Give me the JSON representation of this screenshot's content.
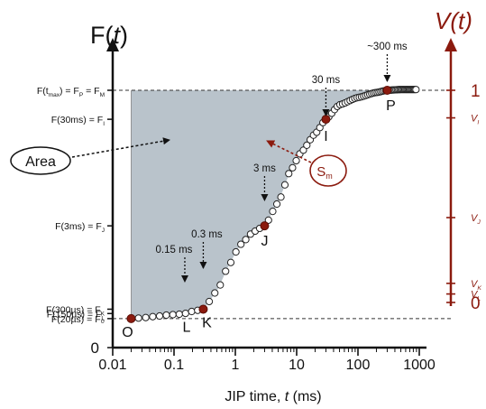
{
  "chart_data": {
    "type": "scatter",
    "x_scale": "log",
    "xlim": [
      0.01,
      1000
    ],
    "xlabel": "JIP time, t (ms)",
    "xticks": [
      {
        "value": 0.01,
        "label": "0.01"
      },
      {
        "value": 0.1,
        "label": "0.1"
      },
      {
        "value": 1,
        "label": "1"
      },
      {
        "value": 10,
        "label": "10"
      },
      {
        "value": 100,
        "label": "100"
      },
      {
        "value": 1000,
        "label": "1000"
      }
    ],
    "left_axis": {
      "title": "F(t)",
      "origin_label": "0",
      "ticks": [
        {
          "value": 0.4,
          "label": "F(20µs) = F₀"
        },
        {
          "value": 0.47,
          "label": "F(150µs) = F_L"
        },
        {
          "value": 0.53,
          "label": "F(300µs) = F_K"
        },
        {
          "value": 1.68,
          "label": "F(3ms) = F_J"
        },
        {
          "value": 3.15,
          "label": "F(30ms) = F_I"
        },
        {
          "value": 3.55,
          "label": "F(t_max) = F_P = F_M"
        }
      ]
    },
    "right_axis": {
      "title": "V(t)",
      "ticks": [
        {
          "value": 0,
          "label": "0"
        },
        {
          "value": 0.04,
          "label": "V_L"
        },
        {
          "value": 0.09,
          "label": "V_K"
        },
        {
          "value": 0.4,
          "label": "V_J"
        },
        {
          "value": 0.87,
          "label": "V_I"
        },
        {
          "value": 1,
          "label": "1"
        }
      ],
      "color": "#8b1a0e"
    },
    "series": [
      {
        "points": [
          [
            0.02,
            0.4
          ],
          [
            0.03,
            0.41
          ],
          [
            0.05,
            0.43
          ],
          [
            0.08,
            0.45
          ],
          [
            0.12,
            0.46
          ],
          [
            0.15,
            0.47
          ],
          [
            0.2,
            0.5
          ],
          [
            0.3,
            0.53
          ],
          [
            0.5,
            0.78
          ],
          [
            0.8,
            1.15
          ],
          [
            1.2,
            1.42
          ],
          [
            2.0,
            1.6
          ],
          [
            3.0,
            1.68
          ],
          [
            5.0,
            2.0
          ],
          [
            8.0,
            2.45
          ],
          [
            12.0,
            2.7
          ],
          [
            20.0,
            2.95
          ],
          [
            30.0,
            3.15
          ],
          [
            50.0,
            3.35
          ],
          [
            100.0,
            3.45
          ],
          [
            200.0,
            3.52
          ],
          [
            300.0,
            3.55
          ],
          [
            500.0,
            3.56
          ],
          [
            900.0,
            3.56
          ]
        ]
      }
    ],
    "key_points": [
      {
        "label": "O",
        "x": 0.02,
        "y": 0.4
      },
      {
        "label": "L",
        "x": 0.15,
        "y": 0.47
      },
      {
        "label": "K",
        "x": 0.3,
        "y": 0.53
      },
      {
        "label": "J",
        "x": 3,
        "y": 1.68
      },
      {
        "label": "I",
        "x": 30,
        "y": 3.15
      },
      {
        "label": "P",
        "x": 300,
        "y": 3.55
      }
    ],
    "time_annotations": [
      {
        "label": "0.15 ms",
        "x": 0.15
      },
      {
        "label": "0.3 ms",
        "x": 0.3
      },
      {
        "label": "3 ms",
        "x": 3
      },
      {
        "label": "30 ms",
        "x": 30
      },
      {
        "label": "~300 ms",
        "x": 300
      }
    ],
    "area_label": "Area",
    "sm_label": "S",
    "sm_subscript": "m",
    "grid": false,
    "colors": {
      "accent": "#8b1a0e",
      "area_fill": "#b9c3cb",
      "axis": "#111111",
      "marker_edge": "#222222"
    }
  }
}
